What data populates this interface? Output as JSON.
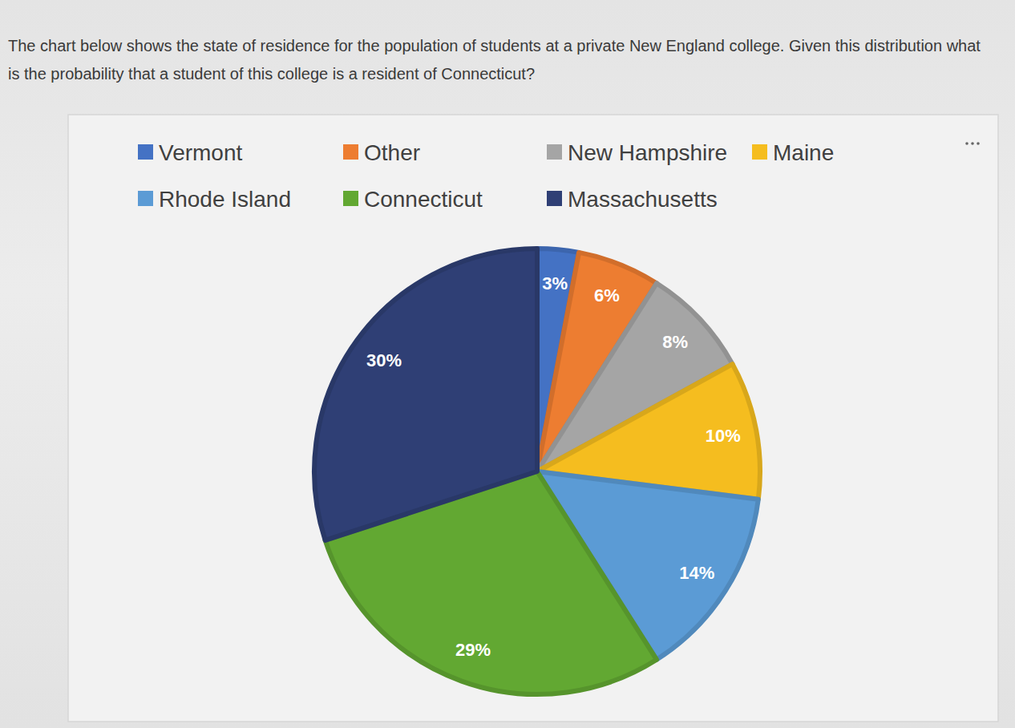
{
  "chart_data": {
    "type": "pie",
    "title": "The chart below shows the state of residence for the population of students at a private New England college. Given this distribution what is the probability that a student of this college is a resident of Connecticut?",
    "categories": [
      "Vermont",
      "Other",
      "New Hampshire",
      "Maine",
      "Rhode Island",
      "Connecticut",
      "Massachusetts"
    ],
    "values": [
      3,
      6,
      8,
      10,
      14,
      29,
      30
    ],
    "value_labels": [
      "3%",
      "6%",
      "8%",
      "10%",
      "14%",
      "29%",
      "30%"
    ],
    "colors": [
      "#4472c4",
      "#ed7d31",
      "#a5a5a5",
      "#f5bd1f",
      "#5b9bd5",
      "#62a832",
      "#2f3f75"
    ],
    "data_labels": true,
    "legend": "top"
  }
}
